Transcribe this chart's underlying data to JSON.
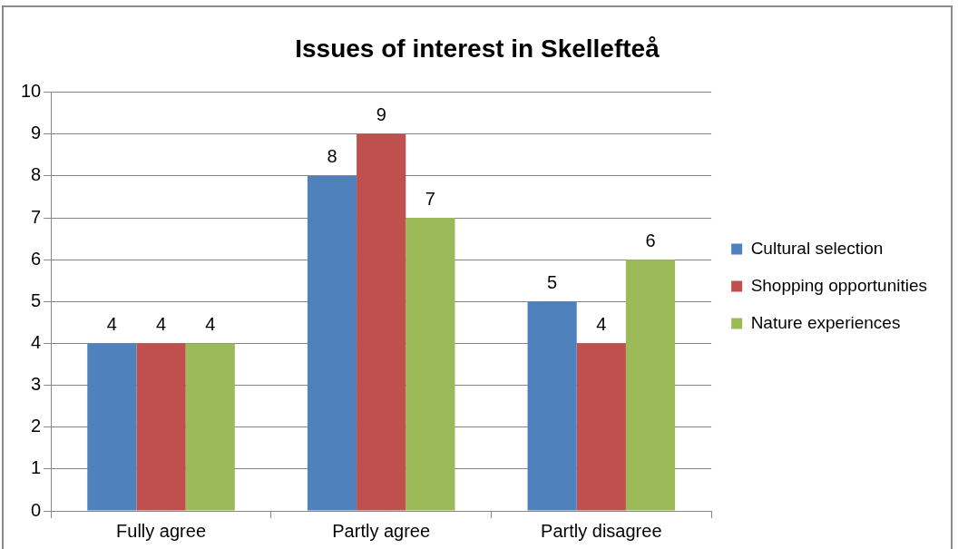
{
  "chart_data": {
    "type": "bar",
    "title": "Issues of interest in Skellefteå",
    "categories": [
      "Fully agree",
      "Partly agree",
      "Partly disagree"
    ],
    "series": [
      {
        "name": "Cultural selection",
        "color": "#4f81bd",
        "values": [
          4,
          8,
          5
        ]
      },
      {
        "name": "Shopping opportunities",
        "color": "#c0504d",
        "values": [
          4,
          9,
          4
        ]
      },
      {
        "name": "Nature experiences",
        "color": "#9bbb59",
        "values": [
          4,
          7,
          6
        ]
      }
    ],
    "ylim": [
      0,
      10
    ],
    "yticks": [
      0,
      1,
      2,
      3,
      4,
      5,
      6,
      7,
      8,
      9,
      10
    ],
    "grid": "y",
    "legend": "right",
    "data_labels": true
  }
}
